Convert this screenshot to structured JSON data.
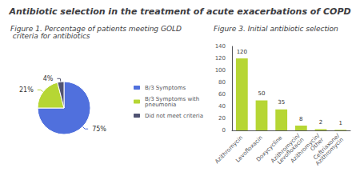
{
  "title": "Antibiotic selection in the treatment of acute exacerbations of COPD",
  "chart_data": [
    {
      "type": "pie",
      "title": "Figure 1. Percentage of patients meeting GOLD criteria for antibiotics",
      "categories": [
        "B/3 Symptoms",
        "B/3 Symptoms with\npneumonia",
        "Did not meet criteria"
      ],
      "values": [
        75,
        21,
        4
      ],
      "value_labels": [
        "75%",
        "21%",
        "4%"
      ],
      "data_labels": true,
      "legend": "right"
    },
    {
      "type": "bar",
      "title": "Figure 3. Initial antibiotic selection",
      "categories": [
        "Azithromycin",
        "Levofloxacin",
        "Doxycycline",
        "Azithromycin/\nLevofloxacin",
        "Azithromycin/\nOther",
        "Ceftriaxone/\nAzithromycin"
      ],
      "values": [
        120,
        50,
        35,
        8,
        2,
        1
      ],
      "ylim": [
        0,
        140
      ],
      "yticks": [
        0,
        20,
        40,
        60,
        80,
        100,
        120,
        140
      ],
      "data_labels": true,
      "grid": false
    }
  ]
}
